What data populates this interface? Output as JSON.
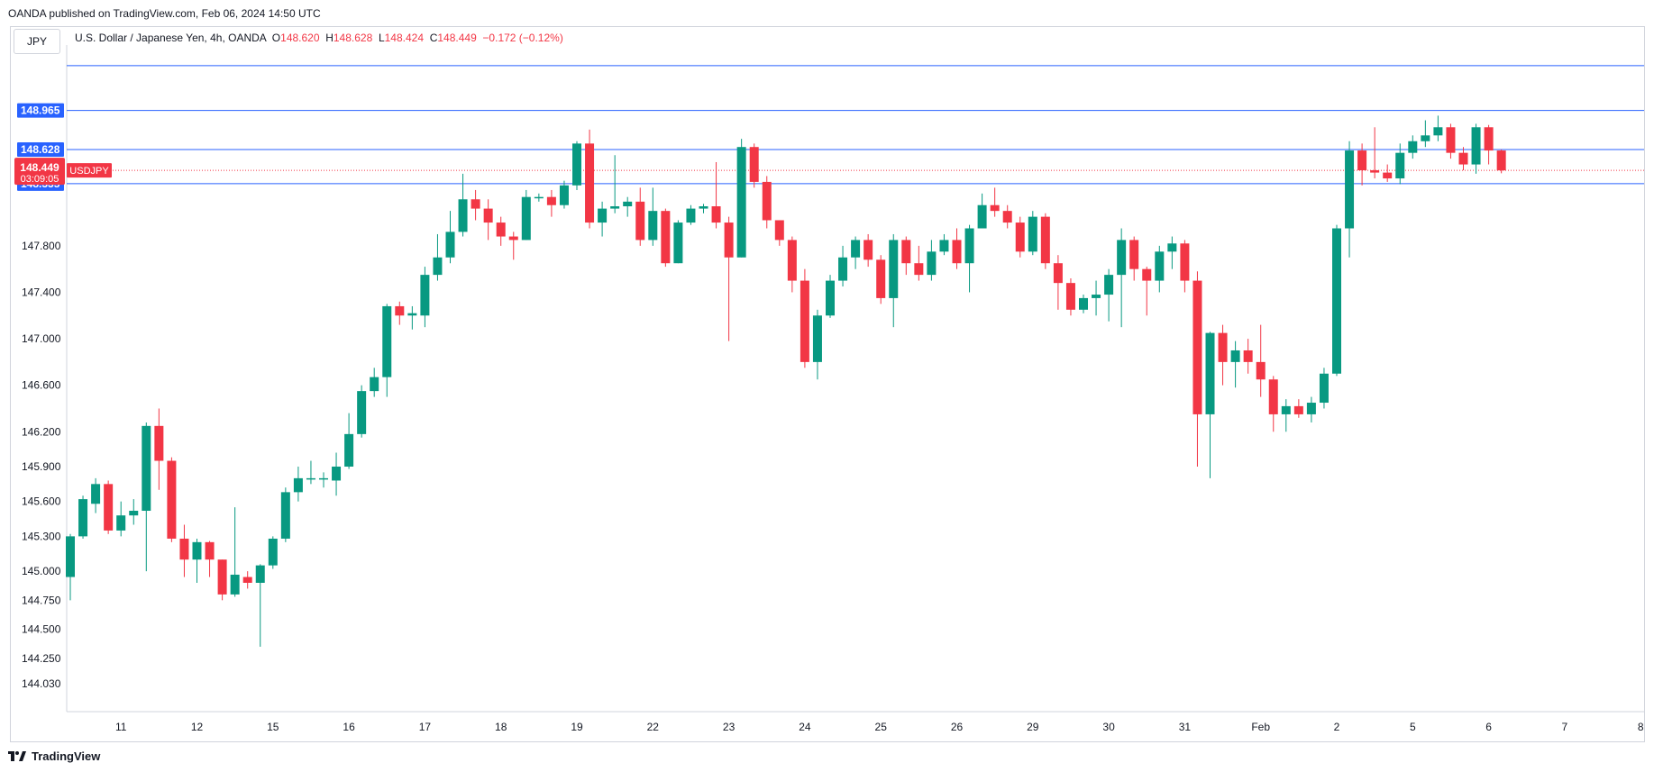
{
  "header": {
    "publisher": "OANDA published on TradingView.com, Feb 06, 2024 14:50 UTC"
  },
  "symbol_box": "JPY",
  "legend": {
    "name": "U.S. Dollar / Japanese Yen, 4h, OANDA",
    "open_label": "O",
    "open": "148.620",
    "high_label": "H",
    "high": "148.628",
    "low_label": "L",
    "low": "148.424",
    "close_label": "C",
    "close": "148.449",
    "change": "−0.172 (−0.12%)"
  },
  "footer": {
    "brand": "TradingView"
  },
  "colors": {
    "up": "#089981",
    "down": "#f23645",
    "level": "#2962ff",
    "grid": "#d1d4dc"
  },
  "chart_data": {
    "type": "candlestick",
    "symbol": "USDJPY",
    "interval": "4h",
    "ylim": [
      143.9,
      149.45
    ],
    "y_ticks": [
      "148.965",
      "148.628",
      "148.335",
      "147.800",
      "147.400",
      "147.000",
      "146.600",
      "146.200",
      "145.900",
      "145.600",
      "145.300",
      "145.000",
      "144.750",
      "144.500",
      "144.250",
      "144.030"
    ],
    "x_ticks": [
      {
        "label": "11",
        "i": 4
      },
      {
        "label": "12",
        "i": 10
      },
      {
        "label": "15",
        "i": 16
      },
      {
        "label": "16",
        "i": 22
      },
      {
        "label": "17",
        "i": 28
      },
      {
        "label": "18",
        "i": 34
      },
      {
        "label": "19",
        "i": 40
      },
      {
        "label": "22",
        "i": 46
      },
      {
        "label": "23",
        "i": 52
      },
      {
        "label": "24",
        "i": 58
      },
      {
        "label": "25",
        "i": 64
      },
      {
        "label": "26",
        "i": 70
      },
      {
        "label": "29",
        "i": 76
      },
      {
        "label": "30",
        "i": 82
      },
      {
        "label": "31",
        "i": 88
      },
      {
        "label": "Feb",
        "i": 94
      },
      {
        "label": "2",
        "i": 100
      },
      {
        "label": "5",
        "i": 106
      },
      {
        "label": "6",
        "i": 112
      },
      {
        "label": "7",
        "i": 118
      },
      {
        "label": "8",
        "i": 124
      }
    ],
    "horizontal_levels": [
      149.35,
      148.965,
      148.628,
      148.335
    ],
    "last_price": {
      "label": "148.449",
      "countdown": "03:09:05",
      "symbol_tag": "USDJPY"
    },
    "candles": [
      [
        144.95,
        145.3,
        145.32,
        144.75
      ],
      [
        145.3,
        145.62,
        145.65,
        145.28
      ],
      [
        145.58,
        145.75,
        145.8,
        145.5
      ],
      [
        145.75,
        145.35,
        145.78,
        145.32
      ],
      [
        145.35,
        145.48,
        145.6,
        145.3
      ],
      [
        145.48,
        145.52,
        145.62,
        145.4
      ],
      [
        145.52,
        146.25,
        146.28,
        145.0
      ],
      [
        146.25,
        145.95,
        146.4,
        145.7
      ],
      [
        145.95,
        145.28,
        145.98,
        145.25
      ],
      [
        145.28,
        145.1,
        145.4,
        144.95
      ],
      [
        145.1,
        145.25,
        145.28,
        144.9
      ],
      [
        145.25,
        145.1,
        145.26,
        144.95
      ],
      [
        145.1,
        144.8,
        145.1,
        144.75
      ],
      [
        144.8,
        144.97,
        145.55,
        144.78
      ],
      [
        144.95,
        144.9,
        145.0,
        144.85
      ],
      [
        144.9,
        145.05,
        145.06,
        144.35
      ],
      [
        145.05,
        145.28,
        145.3,
        145.02
      ],
      [
        145.28,
        145.68,
        145.72,
        145.25
      ],
      [
        145.68,
        145.8,
        145.9,
        145.6
      ],
      [
        145.8,
        145.8,
        145.95,
        145.75
      ],
      [
        145.8,
        145.8,
        145.85,
        145.72
      ],
      [
        145.78,
        145.9,
        146.02,
        145.65
      ],
      [
        145.9,
        146.18,
        146.36,
        145.88
      ],
      [
        146.18,
        146.55,
        146.6,
        146.15
      ],
      [
        146.55,
        146.67,
        146.75,
        146.5
      ],
      [
        146.67,
        147.28,
        147.3,
        146.5
      ],
      [
        147.28,
        147.2,
        147.32,
        147.12
      ],
      [
        147.2,
        147.22,
        147.28,
        147.08
      ],
      [
        147.2,
        147.55,
        147.62,
        147.1
      ],
      [
        147.55,
        147.7,
        147.9,
        147.5
      ],
      [
        147.7,
        147.92,
        148.1,
        147.65
      ],
      [
        147.92,
        148.2,
        148.42,
        147.88
      ],
      [
        148.2,
        148.12,
        148.28,
        148.02
      ],
      [
        148.12,
        148.0,
        148.2,
        147.85
      ],
      [
        148.0,
        147.88,
        148.05,
        147.8
      ],
      [
        147.88,
        147.85,
        147.92,
        147.68
      ],
      [
        147.85,
        148.22,
        148.28,
        147.85
      ],
      [
        148.22,
        148.22,
        148.25,
        148.18
      ],
      [
        148.22,
        148.15,
        148.28,
        148.05
      ],
      [
        148.15,
        148.32,
        148.36,
        148.12
      ],
      [
        148.32,
        148.68,
        148.7,
        148.28
      ],
      [
        148.68,
        148.0,
        148.8,
        147.95
      ],
      [
        148.0,
        148.12,
        148.18,
        147.88
      ],
      [
        148.12,
        148.14,
        148.58,
        148.08
      ],
      [
        148.14,
        148.18,
        148.22,
        148.05
      ],
      [
        148.18,
        147.85,
        148.3,
        147.8
      ],
      [
        147.85,
        148.1,
        148.3,
        147.8
      ],
      [
        148.1,
        147.65,
        148.12,
        147.62
      ],
      [
        147.65,
        148.0,
        148.02,
        147.65
      ],
      [
        148.0,
        148.12,
        148.15,
        147.98
      ],
      [
        148.12,
        148.14,
        148.16,
        148.08
      ],
      [
        148.14,
        148.0,
        148.52,
        147.95
      ],
      [
        148.0,
        147.7,
        148.05,
        146.98
      ],
      [
        147.7,
        148.65,
        148.72,
        147.7
      ],
      [
        148.65,
        148.35,
        148.68,
        148.3
      ],
      [
        148.35,
        148.02,
        148.4,
        147.95
      ],
      [
        148.02,
        147.85,
        148.02,
        147.8
      ],
      [
        147.85,
        147.5,
        147.88,
        147.4
      ],
      [
        147.5,
        146.8,
        147.6,
        146.75
      ],
      [
        146.8,
        147.2,
        147.25,
        146.65
      ],
      [
        147.2,
        147.5,
        147.55,
        147.18
      ],
      [
        147.5,
        147.7,
        147.8,
        147.45
      ],
      [
        147.7,
        147.85,
        147.88,
        147.6
      ],
      [
        147.85,
        147.68,
        147.9,
        147.62
      ],
      [
        147.68,
        147.35,
        147.72,
        147.3
      ],
      [
        147.35,
        147.85,
        147.9,
        147.1
      ],
      [
        147.85,
        147.65,
        147.88,
        147.55
      ],
      [
        147.65,
        147.55,
        147.8,
        147.5
      ],
      [
        147.55,
        147.75,
        147.85,
        147.5
      ],
      [
        147.75,
        147.85,
        147.9,
        147.72
      ],
      [
        147.85,
        147.65,
        147.95,
        147.6
      ],
      [
        147.65,
        147.95,
        147.98,
        147.4
      ],
      [
        147.95,
        148.15,
        148.25,
        147.95
      ],
      [
        148.15,
        148.1,
        148.3,
        148.05
      ],
      [
        148.1,
        148.0,
        148.15,
        147.95
      ],
      [
        148.0,
        147.75,
        148.05,
        147.7
      ],
      [
        147.75,
        148.05,
        148.1,
        147.72
      ],
      [
        148.05,
        147.65,
        148.08,
        147.6
      ],
      [
        147.65,
        147.48,
        147.72,
        147.25
      ],
      [
        147.48,
        147.25,
        147.52,
        147.2
      ],
      [
        147.25,
        147.35,
        147.38,
        147.22
      ],
      [
        147.35,
        147.38,
        147.5,
        147.2
      ],
      [
        147.38,
        147.55,
        147.6,
        147.15
      ],
      [
        147.55,
        147.85,
        147.95,
        147.1
      ],
      [
        147.85,
        147.6,
        147.88,
        147.5
      ],
      [
        147.6,
        147.5,
        147.62,
        147.2
      ],
      [
        147.5,
        147.75,
        147.8,
        147.4
      ],
      [
        147.75,
        147.82,
        147.88,
        147.6
      ],
      [
        147.82,
        147.5,
        147.85,
        147.4
      ],
      [
        147.5,
        146.35,
        147.58,
        145.9
      ],
      [
        146.35,
        147.05,
        147.06,
        145.8
      ],
      [
        147.05,
        146.8,
        147.12,
        146.6
      ],
      [
        146.8,
        146.9,
        146.98,
        146.58
      ],
      [
        146.9,
        146.8,
        147.0,
        146.7
      ],
      [
        146.8,
        146.65,
        147.12,
        146.5
      ],
      [
        146.65,
        146.35,
        146.68,
        146.2
      ],
      [
        146.35,
        146.42,
        146.48,
        146.2
      ],
      [
        146.42,
        146.35,
        146.48,
        146.32
      ],
      [
        146.35,
        146.45,
        146.5,
        146.28
      ],
      [
        146.45,
        146.7,
        146.75,
        146.4
      ],
      [
        146.7,
        147.95,
        147.98,
        146.68
      ],
      [
        147.95,
        148.62,
        148.7,
        147.7
      ],
      [
        148.62,
        148.45,
        148.68,
        148.32
      ],
      [
        148.45,
        148.43,
        148.82,
        148.38
      ],
      [
        148.43,
        148.38,
        148.5,
        148.35
      ],
      [
        148.38,
        148.6,
        148.68,
        148.33
      ],
      [
        148.6,
        148.7,
        148.75,
        148.55
      ],
      [
        148.7,
        148.75,
        148.88,
        148.65
      ],
      [
        148.75,
        148.82,
        148.92,
        148.7
      ],
      [
        148.82,
        148.6,
        148.85,
        148.55
      ],
      [
        148.6,
        148.5,
        148.65,
        148.45
      ],
      [
        148.5,
        148.82,
        148.85,
        148.42
      ],
      [
        148.82,
        148.62,
        148.84,
        148.5
      ],
      [
        148.62,
        148.449,
        148.628,
        148.424
      ]
    ]
  }
}
